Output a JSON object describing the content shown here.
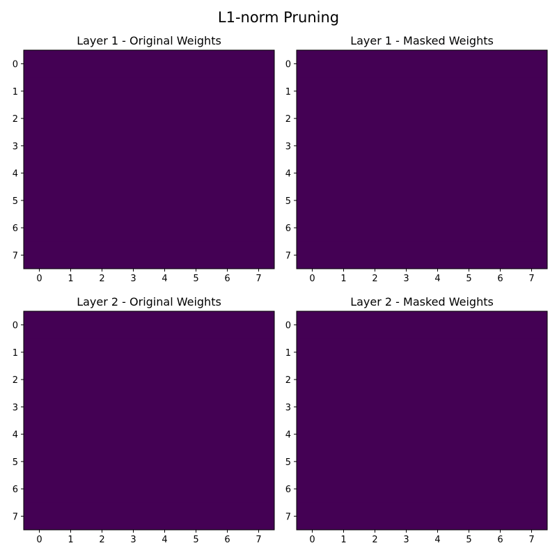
{
  "figure": {
    "suptitle": "L1-norm Pruning"
  },
  "colors": {
    "heat_fill": "#440154",
    "axis": "#000000",
    "background": "#ffffff"
  },
  "chart_data": [
    {
      "type": "heatmap",
      "title": "Layer 1 - Original Weights",
      "x_ticks": [
        "0",
        "1",
        "2",
        "3",
        "4",
        "5",
        "6",
        "7"
      ],
      "y_ticks": [
        "0",
        "1",
        "2",
        "3",
        "4",
        "5",
        "6",
        "7"
      ],
      "rows": 8,
      "cols": 8,
      "colormap": "viridis",
      "values": [
        [
          0,
          0,
          0,
          0,
          0,
          0,
          0,
          0
        ],
        [
          0,
          0,
          0,
          0,
          0,
          0,
          0,
          0
        ],
        [
          0,
          0,
          0,
          0,
          0,
          0,
          0,
          0
        ],
        [
          0,
          0,
          0,
          0,
          0,
          0,
          0,
          0
        ],
        [
          0,
          0,
          0,
          0,
          0,
          0,
          0,
          0
        ],
        [
          0,
          0,
          0,
          0,
          0,
          0,
          0,
          0
        ],
        [
          0,
          0,
          0,
          0,
          0,
          0,
          0,
          0
        ],
        [
          0,
          0,
          0,
          0,
          0,
          0,
          0,
          0
        ]
      ]
    },
    {
      "type": "heatmap",
      "title": "Layer 1 - Masked Weights",
      "x_ticks": [
        "0",
        "1",
        "2",
        "3",
        "4",
        "5",
        "6",
        "7"
      ],
      "y_ticks": [
        "0",
        "1",
        "2",
        "3",
        "4",
        "5",
        "6",
        "7"
      ],
      "rows": 8,
      "cols": 8,
      "colormap": "viridis",
      "values": [
        [
          0,
          0,
          0,
          0,
          0,
          0,
          0,
          0
        ],
        [
          0,
          0,
          0,
          0,
          0,
          0,
          0,
          0
        ],
        [
          0,
          0,
          0,
          0,
          0,
          0,
          0,
          0
        ],
        [
          0,
          0,
          0,
          0,
          0,
          0,
          0,
          0
        ],
        [
          0,
          0,
          0,
          0,
          0,
          0,
          0,
          0
        ],
        [
          0,
          0,
          0,
          0,
          0,
          0,
          0,
          0
        ],
        [
          0,
          0,
          0,
          0,
          0,
          0,
          0,
          0
        ],
        [
          0,
          0,
          0,
          0,
          0,
          0,
          0,
          0
        ]
      ]
    },
    {
      "type": "heatmap",
      "title": "Layer 2 - Original Weights",
      "x_ticks": [
        "0",
        "1",
        "2",
        "3",
        "4",
        "5",
        "6",
        "7"
      ],
      "y_ticks": [
        "0",
        "1",
        "2",
        "3",
        "4",
        "5",
        "6",
        "7"
      ],
      "rows": 8,
      "cols": 8,
      "colormap": "viridis",
      "values": [
        [
          0,
          0,
          0,
          0,
          0,
          0,
          0,
          0
        ],
        [
          0,
          0,
          0,
          0,
          0,
          0,
          0,
          0
        ],
        [
          0,
          0,
          0,
          0,
          0,
          0,
          0,
          0
        ],
        [
          0,
          0,
          0,
          0,
          0,
          0,
          0,
          0
        ],
        [
          0,
          0,
          0,
          0,
          0,
          0,
          0,
          0
        ],
        [
          0,
          0,
          0,
          0,
          0,
          0,
          0,
          0
        ],
        [
          0,
          0,
          0,
          0,
          0,
          0,
          0,
          0
        ],
        [
          0,
          0,
          0,
          0,
          0,
          0,
          0,
          0
        ]
      ]
    },
    {
      "type": "heatmap",
      "title": "Layer 2 - Masked Weights",
      "x_ticks": [
        "0",
        "1",
        "2",
        "3",
        "4",
        "5",
        "6",
        "7"
      ],
      "y_ticks": [
        "0",
        "1",
        "2",
        "3",
        "4",
        "5",
        "6",
        "7"
      ],
      "rows": 8,
      "cols": 8,
      "colormap": "viridis",
      "values": [
        [
          0,
          0,
          0,
          0,
          0,
          0,
          0,
          0
        ],
        [
          0,
          0,
          0,
          0,
          0,
          0,
          0,
          0
        ],
        [
          0,
          0,
          0,
          0,
          0,
          0,
          0,
          0
        ],
        [
          0,
          0,
          0,
          0,
          0,
          0,
          0,
          0
        ],
        [
          0,
          0,
          0,
          0,
          0,
          0,
          0,
          0
        ],
        [
          0,
          0,
          0,
          0,
          0,
          0,
          0,
          0
        ],
        [
          0,
          0,
          0,
          0,
          0,
          0,
          0,
          0
        ],
        [
          0,
          0,
          0,
          0,
          0,
          0,
          0,
          0
        ]
      ]
    }
  ]
}
